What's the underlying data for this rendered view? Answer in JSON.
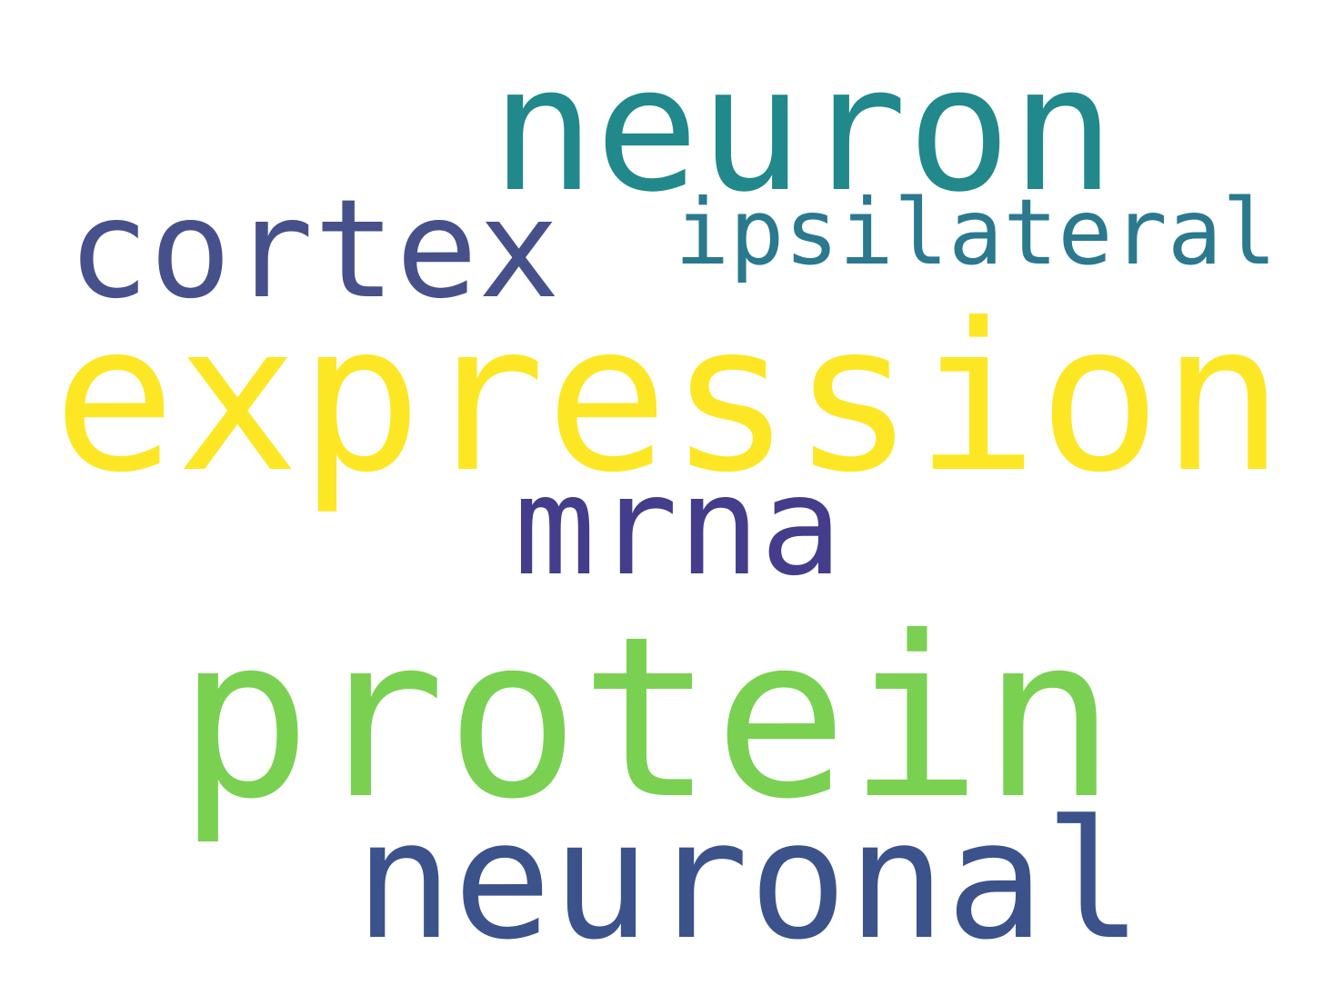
{
  "words": [
    {
      "id": "neuron",
      "text": "neuron",
      "color": "#21888c"
    },
    {
      "id": "cortex",
      "text": "cortex",
      "color": "#46508a"
    },
    {
      "id": "ipsilateral",
      "text": "ipsilateral",
      "color": "#2a798e"
    },
    {
      "id": "expression",
      "text": "expression",
      "color": "#fde725"
    },
    {
      "id": "mrna",
      "text": "mrna",
      "color": "#433d8b"
    },
    {
      "id": "protein",
      "text": "protein",
      "color": "#7ad151"
    },
    {
      "id": "neuronal",
      "text": "neuronal",
      "color": "#3b528b"
    }
  ]
}
